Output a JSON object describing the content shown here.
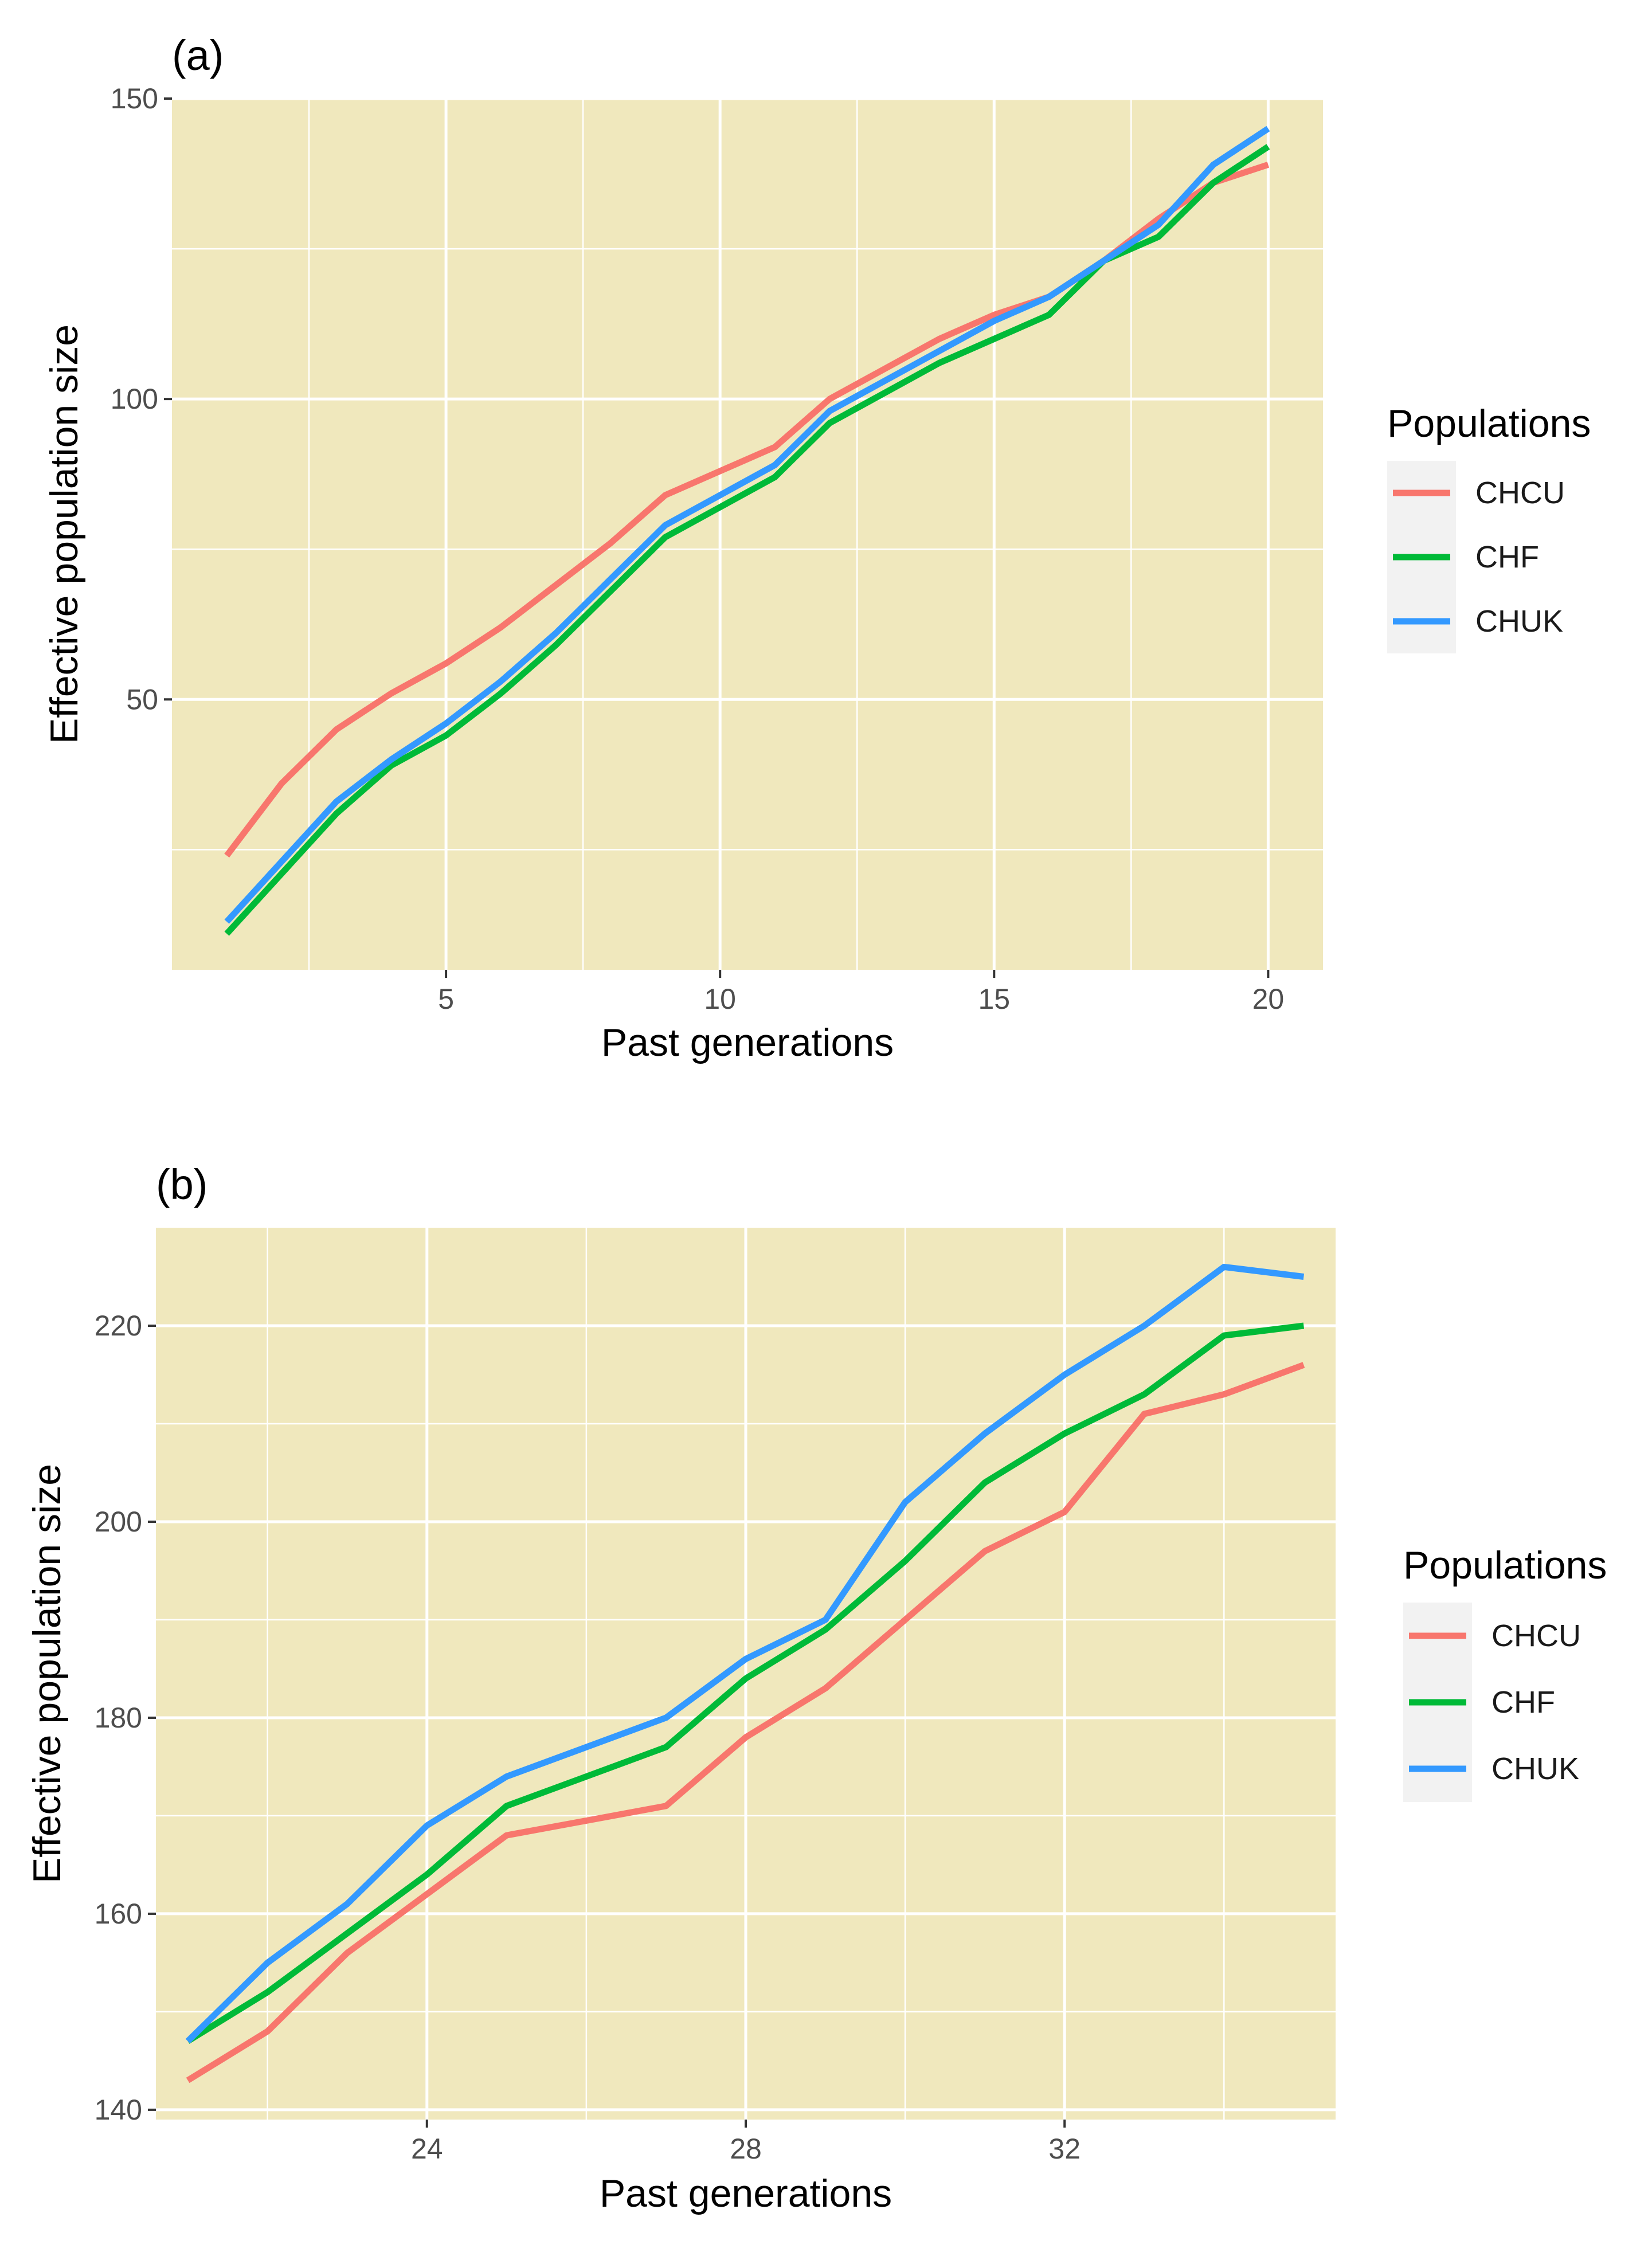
{
  "colors": {
    "panel_background": "#f0e8bd",
    "grid": "#ffffff",
    "legend_key_background": "#f2f2f2",
    "CHCU": "#F8766D",
    "CHF": "#00BA38",
    "CHUK": "#3399FF"
  },
  "chart_data": [
    {
      "type": "line",
      "panel_label": "(a)",
      "xlabel": "Past generations",
      "ylabel": "Effective population size",
      "xlim": [
        0.0,
        21.0
      ],
      "ylim": [
        5,
        150
      ],
      "x_major_ticks": [
        5,
        10,
        15,
        20
      ],
      "x_minor_ticks": [
        2.5,
        7.5,
        12.5,
        17.5
      ],
      "x_tick_labels": [
        "5",
        "10",
        "15",
        "20"
      ],
      "y_major_ticks": [
        50,
        100,
        150
      ],
      "y_minor_ticks": [
        25,
        75,
        125
      ],
      "y_tick_labels": [
        "50",
        "100",
        "150"
      ],
      "grid": true,
      "legend": {
        "title": "Populations",
        "position": "right"
      },
      "x": [
        1,
        2,
        3,
        4,
        5,
        6,
        7,
        8,
        9,
        10,
        11,
        12,
        13,
        14,
        15,
        16,
        17,
        18,
        19,
        20
      ],
      "series": [
        {
          "name": "CHCU",
          "values": [
            24,
            36,
            45,
            51,
            56,
            62,
            69,
            76,
            84,
            88,
            92,
            100,
            105,
            110,
            114,
            117,
            123,
            130,
            136,
            139
          ]
        },
        {
          "name": "CHF",
          "values": [
            11,
            21,
            31,
            39,
            44,
            51,
            59,
            68,
            77,
            82,
            87,
            96,
            101,
            106,
            110,
            114,
            123,
            127,
            136,
            142
          ]
        },
        {
          "name": "CHUK",
          "values": [
            13,
            23,
            33,
            40,
            46,
            53,
            61,
            70,
            79,
            84,
            89,
            98,
            103,
            108,
            113,
            117,
            123,
            129,
            139,
            145
          ]
        }
      ]
    },
    {
      "type": "line",
      "panel_label": "(b)",
      "xlabel": "Past generations",
      "ylabel": "Effective population size",
      "xlim": [
        20.6,
        35.4
      ],
      "ylim": [
        139,
        230
      ],
      "x_major_ticks": [
        24,
        28,
        32
      ],
      "x_minor_ticks": [
        22,
        26,
        30,
        34
      ],
      "x_tick_labels": [
        "24",
        "28",
        "32"
      ],
      "y_major_ticks": [
        140,
        160,
        180,
        200,
        220
      ],
      "y_minor_ticks": [
        150,
        170,
        190,
        210
      ],
      "y_tick_labels": [
        "140",
        "160",
        "180",
        "200",
        "220"
      ],
      "grid": true,
      "legend": {
        "title": "Populations",
        "position": "right"
      },
      "x": [
        21,
        22,
        23,
        24,
        25,
        26,
        27,
        28,
        29,
        30,
        31,
        32,
        33,
        34,
        35
      ],
      "series": [
        {
          "name": "CHCU",
          "values": [
            143,
            148,
            156,
            162,
            168,
            169.5,
            171,
            178,
            183,
            190,
            197,
            201,
            211,
            213,
            216
          ]
        },
        {
          "name": "CHF",
          "values": [
            147,
            152,
            158,
            164,
            171,
            174,
            177,
            184,
            189,
            196,
            204,
            209,
            213,
            219,
            220
          ]
        },
        {
          "name": "CHUK",
          "values": [
            147,
            155,
            161,
            169,
            174,
            177,
            180,
            186,
            190,
            202,
            209,
            215,
            220,
            226,
            225
          ]
        }
      ]
    }
  ]
}
